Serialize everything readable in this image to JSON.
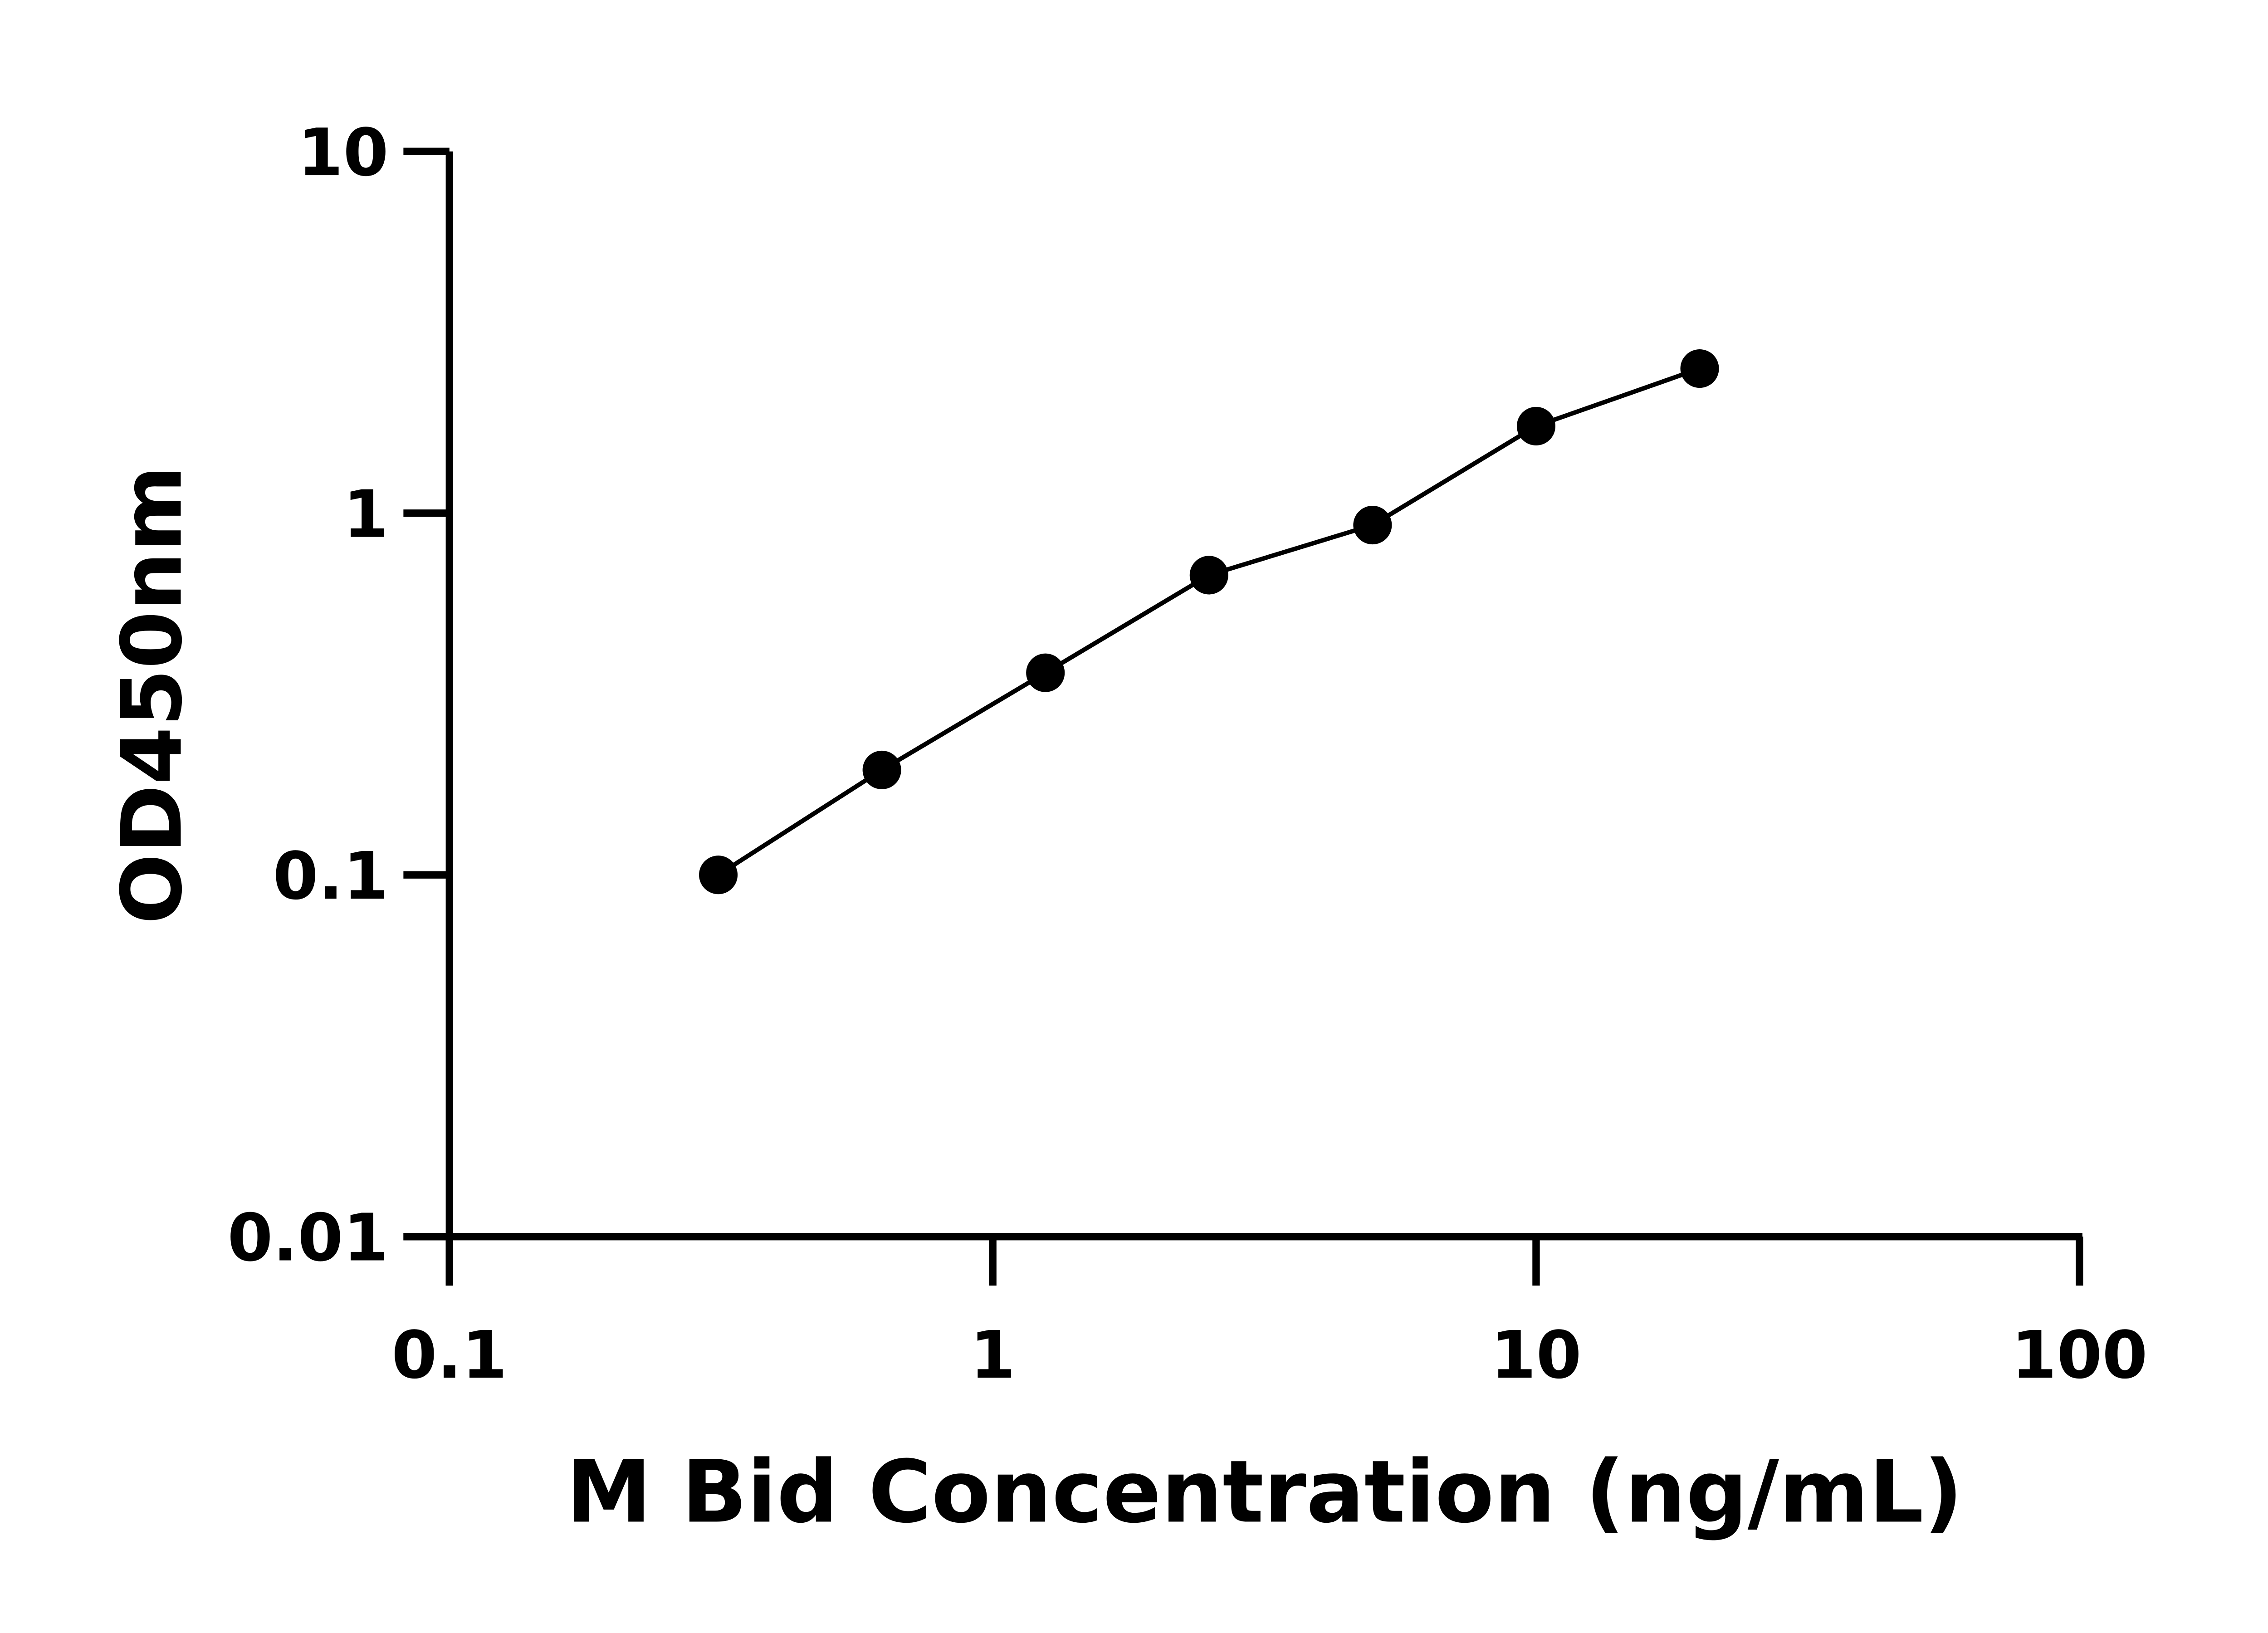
{
  "chart_data": {
    "type": "line",
    "title": "",
    "xlabel": "M Bid Concentration (ng/mL)",
    "ylabel": "OD450nm",
    "x_scale": "log",
    "y_scale": "log",
    "xlim": [
      0.1,
      100
    ],
    "ylim": [
      0.01,
      10
    ],
    "x_ticks": [
      "0.1",
      "1",
      "10",
      "100"
    ],
    "y_ticks": [
      "0.01",
      "0.1",
      "1",
      "10"
    ],
    "grid": false,
    "legend": "none",
    "series": [
      {
        "color": "#000000",
        "marker": "circle",
        "x": [
          0.3125,
          0.625,
          1.25,
          2.5,
          5,
          10,
          20
        ],
        "y": [
          0.1,
          0.195,
          0.362,
          0.674,
          0.927,
          1.74,
          2.51
        ]
      }
    ]
  }
}
